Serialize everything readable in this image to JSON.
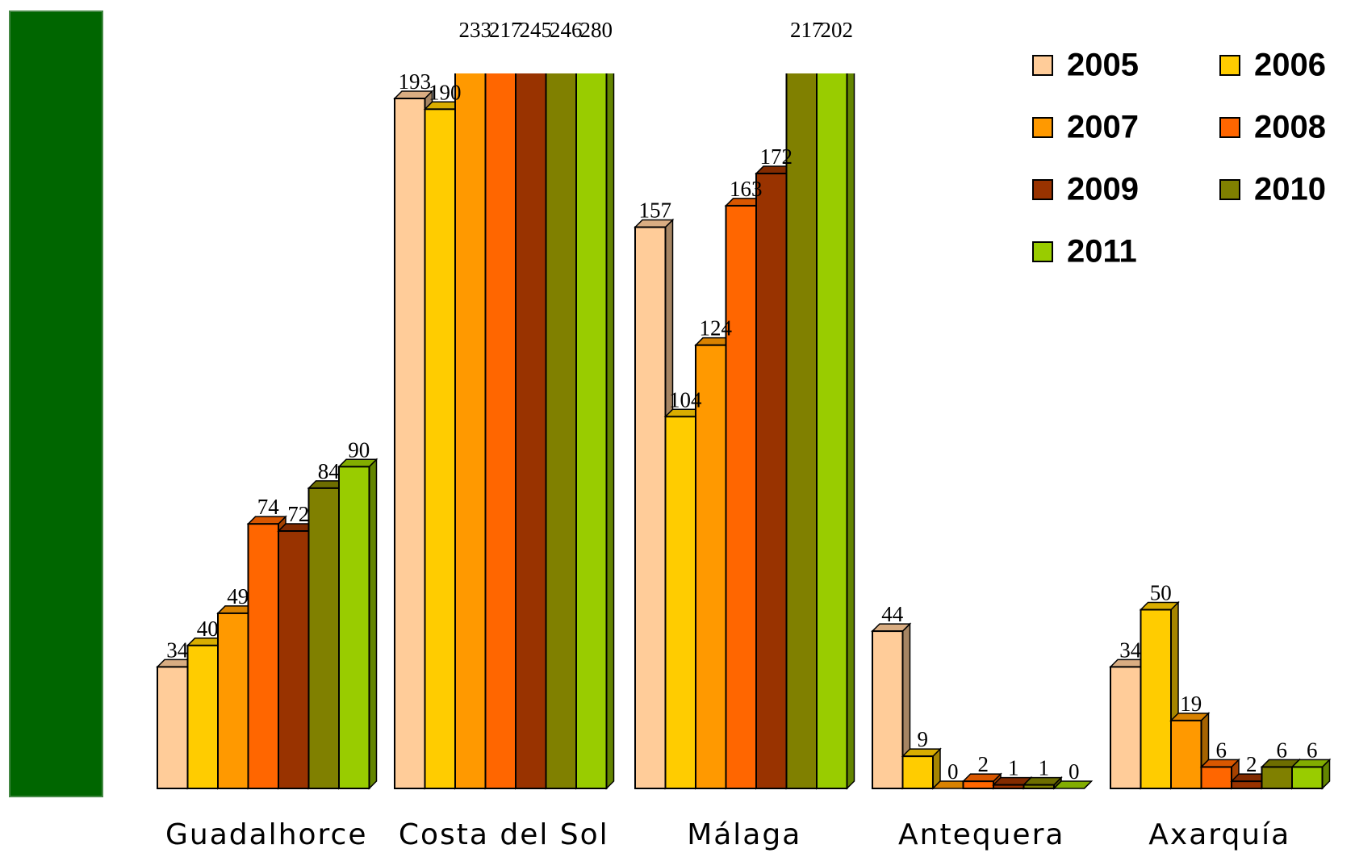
{
  "chart_data": {
    "type": "bar3d",
    "categories": [
      "Guadalhorce",
      "Costa del Sol",
      "Málaga",
      "Antequera",
      "Axarquía"
    ],
    "series": [
      {
        "name": "2005",
        "color": "#ffcc99",
        "values": [
          34,
          193,
          157,
          44,
          34
        ]
      },
      {
        "name": "2006",
        "color": "#ffcc00",
        "values": [
          40,
          190,
          104,
          9,
          50
        ]
      },
      {
        "name": "2007",
        "color": "#ff9900",
        "values": [
          49,
          233,
          124,
          0,
          19
        ]
      },
      {
        "name": "2008",
        "color": "#ff6600",
        "values": [
          74,
          217,
          163,
          2,
          6
        ]
      },
      {
        "name": "2009",
        "color": "#993300",
        "values": [
          72,
          245,
          172,
          1,
          2
        ]
      },
      {
        "name": "2010",
        "color": "#808000",
        "values": [
          84,
          246,
          217,
          1,
          6
        ]
      },
      {
        "name": "2011",
        "color": "#99cc00",
        "values": [
          90,
          280,
          202,
          0,
          6
        ]
      }
    ],
    "ylim": [
      0,
      200
    ]
  }
}
